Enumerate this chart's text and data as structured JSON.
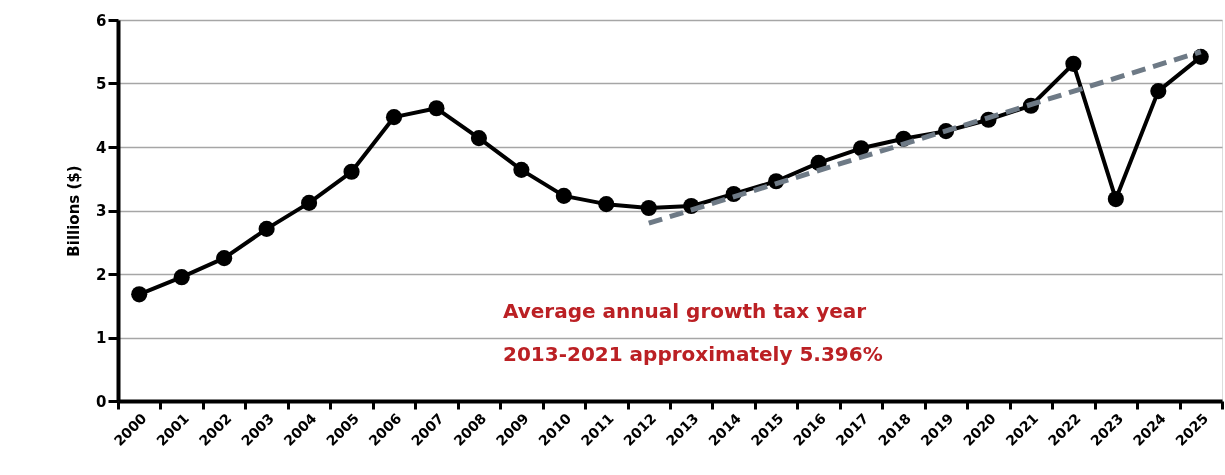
{
  "chart_data": {
    "type": "line",
    "ylabel": "Billions ($)",
    "categories": [
      "2000",
      "2001",
      "2002",
      "2003",
      "2004",
      "2005",
      "2006",
      "2007",
      "2008",
      "2009",
      "2010",
      "2011",
      "2012",
      "2013",
      "2014",
      "2015",
      "2016",
      "2017",
      "2018",
      "2019",
      "2020",
      "2021",
      "2022",
      "2023",
      "2024",
      "2025"
    ],
    "series": [
      {
        "color": "#000000",
        "values": [
          1.68,
          1.95,
          2.25,
          2.71,
          3.12,
          3.61,
          4.47,
          4.61,
          4.14,
          3.64,
          3.23,
          3.1,
          3.04,
          3.07,
          3.26,
          3.46,
          3.75,
          3.98,
          4.13,
          4.25,
          4.43,
          4.65,
          5.31,
          3.18,
          4.88,
          5.42
        ]
      },
      {
        "type": "line",
        "color": "#6e7a86",
        "line_style": "dashed",
        "marker": "none",
        "values": [
          null,
          null,
          null,
          null,
          null,
          null,
          null,
          null,
          null,
          null,
          null,
          null,
          2.8,
          null,
          null,
          null,
          null,
          null,
          null,
          null,
          null,
          null,
          null,
          null,
          null,
          5.5
        ]
      }
    ],
    "ylim": [
      0,
      6
    ],
    "yticks": [
      0,
      1,
      2,
      3,
      4,
      5,
      6
    ],
    "grid": "y",
    "marker": "circle",
    "line_style": "solid",
    "annotations": [
      "Average annual growth tax year\n2013-2021 approximately 5.396%"
    ]
  }
}
